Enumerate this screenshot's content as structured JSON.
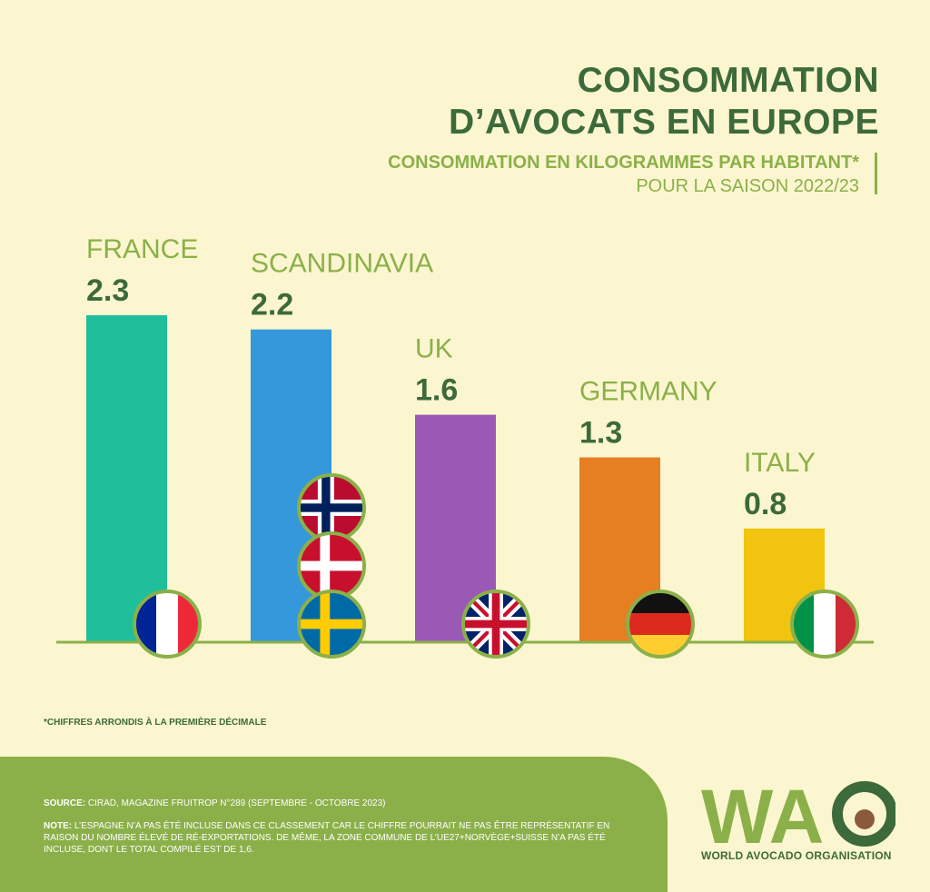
{
  "header": {
    "title_line1": "CONSOMMATION",
    "title_line2": "D’AVOCATS EN EUROPE",
    "subtitle_line1": "CONSOMMATION EN KILOGRAMMES PAR HABITANT*",
    "subtitle_line2": "POUR LA SAISON 2022/23"
  },
  "chart_data": {
    "type": "bar",
    "categories": [
      "FRANCE",
      "SCANDINAVIA",
      "UK",
      "GERMANY",
      "ITALY"
    ],
    "values": [
      2.3,
      2.2,
      1.6,
      1.3,
      0.8
    ],
    "value_labels": [
      "2.3",
      "2.2",
      "1.6",
      "1.3",
      "0.8"
    ],
    "colors": [
      "#1fbf9b",
      "#3498db",
      "#9b59b6",
      "#e67e22",
      "#f1c40f"
    ],
    "flags": [
      [
        "france-flag"
      ],
      [
        "norway-flag",
        "denmark-flag",
        "sweden-flag"
      ],
      [
        "uk-flag"
      ],
      [
        "germany-flag"
      ],
      [
        "italy-flag"
      ]
    ],
    "ylim": [
      0,
      2.5
    ],
    "grid": false,
    "label_color": "#3d6a3a",
    "axis_color": "#8bb04a"
  },
  "footnote": "*CHIFFRES ARRONDIS À LA PREMIÈRE DÉCIMALE",
  "footer": {
    "source_label": "SOURCE:",
    "source_text": " CIRAD, MAGAZINE FRUITROP N°289 (SEPTEMBRE - OCTOBRE 2023)",
    "note_label": "NOTE:",
    "note_text": " L’ESPAGNE N’A PAS ÉTÉ INCLUSE DANS CE CLASSEMENT CAR LE CHIFFRE POURRAIT NE PAS ÊTRE REPRÉSENTATIF EN RAISON DU NOMBRE ÉLEVÉ DE RÉ-EXPORTATIONS. DE MÊME, LA ZONE COMMUNE DE L’UE27+NORVÈGE+SUISSE N’A PAS ÉTÉ INCLUSE, DONT LE TOTAL COMPILÉ EST DE 1,6."
  },
  "logo": {
    "letters_wa": "WA",
    "name": "WORLD AVOCADO ORGANISATION",
    "colors": {
      "dark": "#3d6a3a",
      "light": "#8bb04a",
      "seed": "#8b5a3c"
    }
  }
}
